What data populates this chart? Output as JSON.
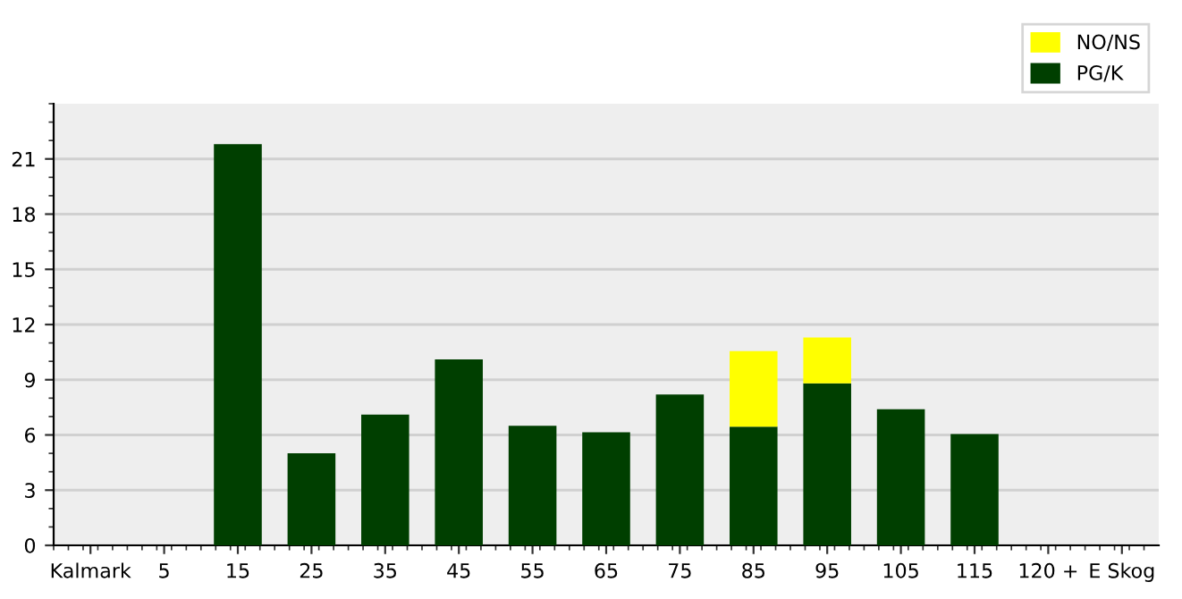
{
  "chart_data": {
    "type": "bar",
    "stacked": true,
    "categories": [
      "Kalmark",
      "5",
      "15",
      "25",
      "35",
      "45",
      "55",
      "65",
      "75",
      "85",
      "95",
      "105",
      "115",
      "120 +",
      "E Skog"
    ],
    "series": [
      {
        "name": "PG/K",
        "color": "#003f00",
        "values": [
          0,
          0,
          21.8,
          5.0,
          7.1,
          10.1,
          6.5,
          6.15,
          8.2,
          6.45,
          8.8,
          7.4,
          6.05,
          0,
          0
        ]
      },
      {
        "name": "NO/NS",
        "color": "#ffff00",
        "values": [
          0,
          0,
          0,
          0,
          0,
          0,
          0,
          0,
          0,
          4.1,
          2.5,
          0,
          0,
          0,
          0
        ]
      }
    ],
    "ylim": [
      0,
      24
    ],
    "yticks": [
      0,
      3,
      6,
      9,
      12,
      15,
      18,
      21
    ],
    "grid": "y",
    "legend": "top right"
  }
}
